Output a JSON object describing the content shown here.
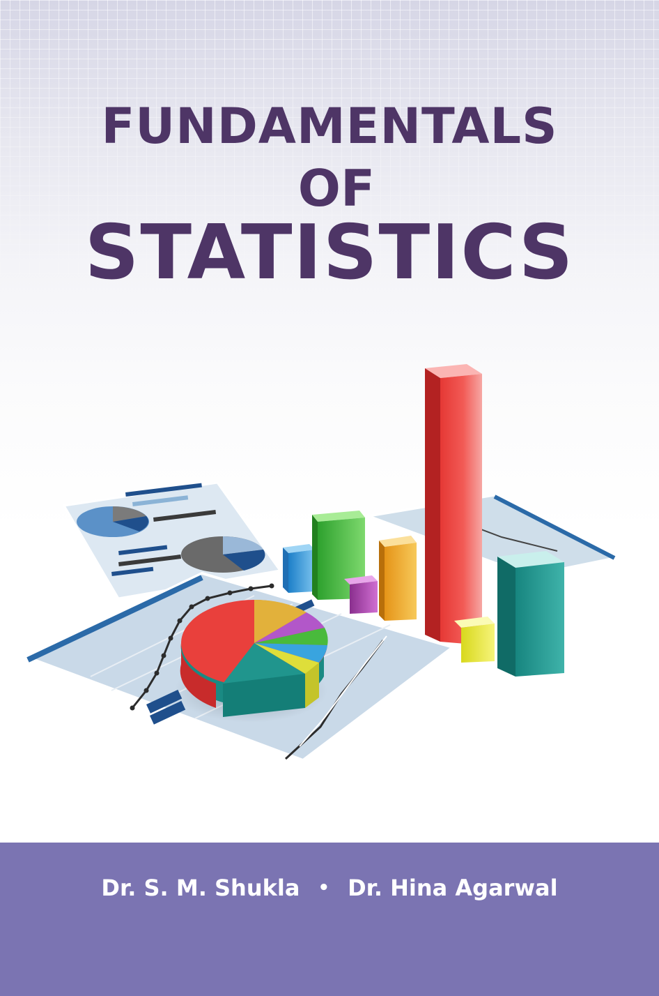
{
  "title": {
    "line1": "FUNDAMENTALS",
    "line2": "OF",
    "line3": "STATISTICS"
  },
  "authors": {
    "first": "Dr. S. M. Shukla",
    "separator": "•",
    "second": "Dr. Hina Agarwal"
  },
  "colors": {
    "title": "#4e3566",
    "footer_band": "#7b74b2",
    "author_text": "#ffffff"
  },
  "illustration": {
    "icon": "statistics-charts-illustration-icon"
  }
}
